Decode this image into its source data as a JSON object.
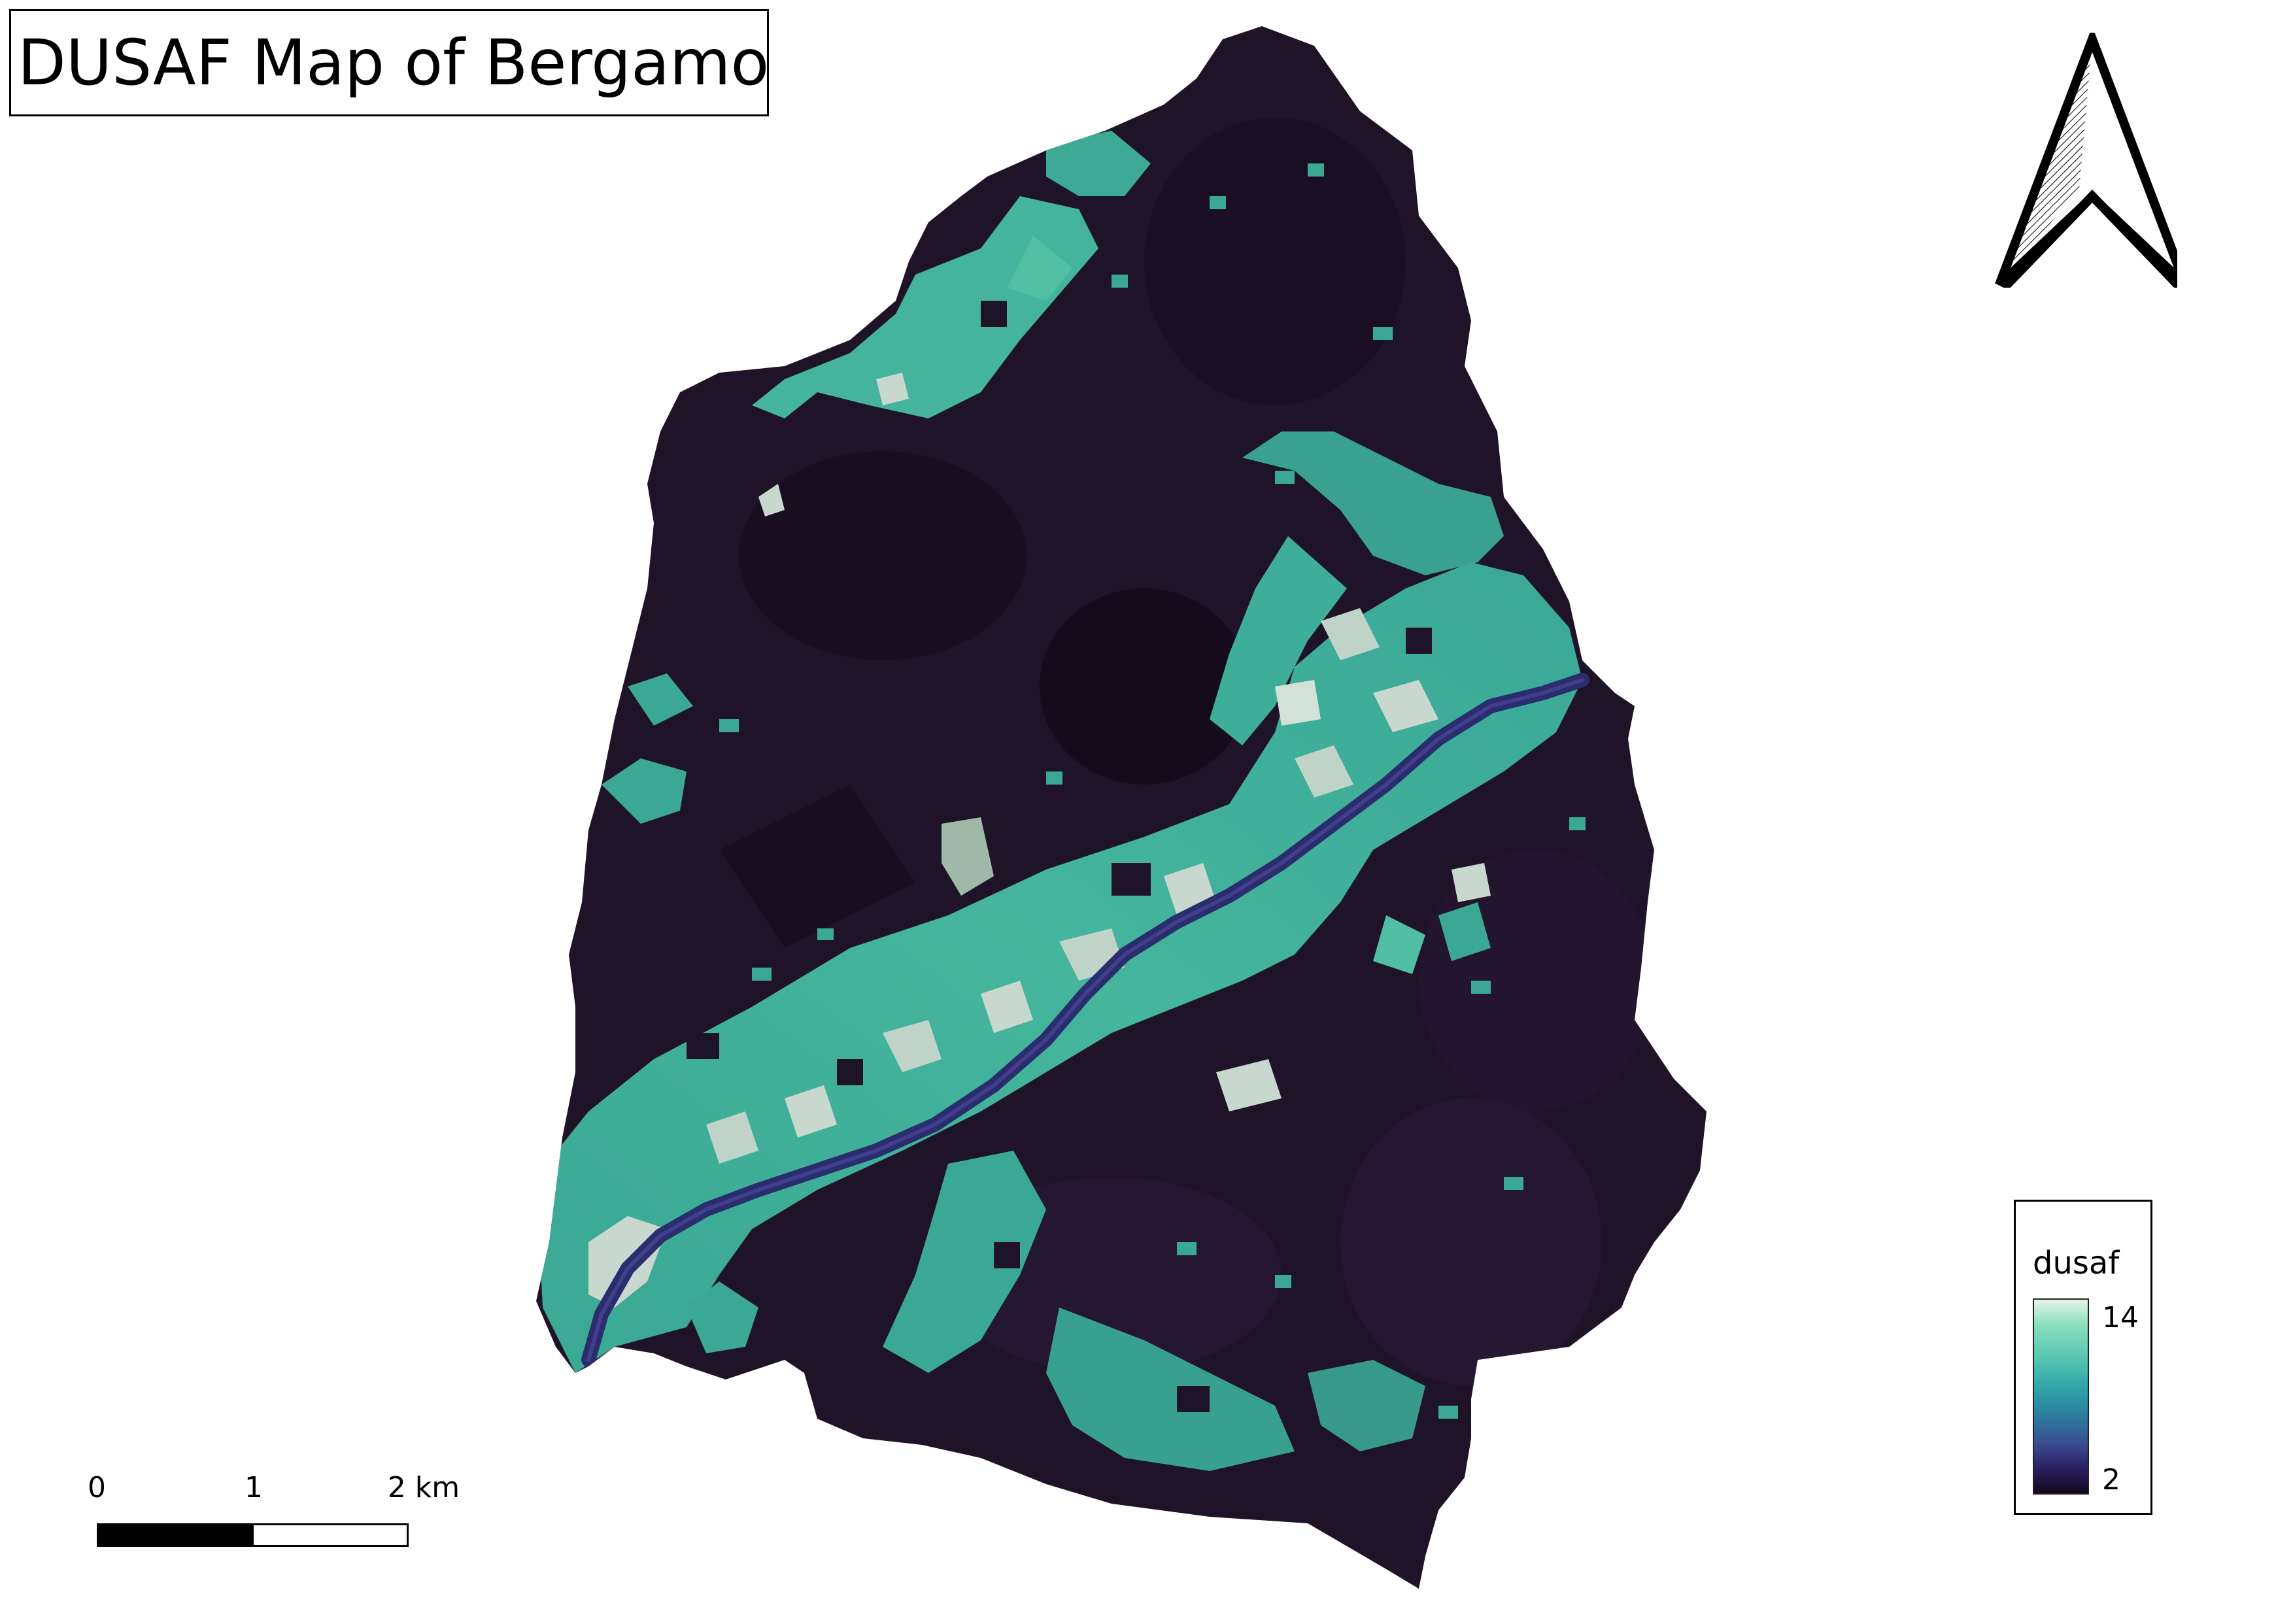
{
  "title": "DUSAF Map of Bergamo",
  "legend": {
    "title": "dusaf",
    "max_label": "14",
    "min_label": "2",
    "ramp_colors": [
      "#e6f5e9",
      "#5cc9b2",
      "#2b7d9e",
      "#2d2266",
      "#12061d"
    ]
  },
  "scalebar": {
    "labels": [
      "0",
      "1",
      "2 km"
    ]
  },
  "colors": {
    "forest_dark": "#1f1328",
    "urban_light": "#c9d8cf",
    "agri_teal": "#3fae98",
    "river": "#2a2d6e"
  },
  "icons": {
    "north_arrow": "north-arrow-icon"
  }
}
